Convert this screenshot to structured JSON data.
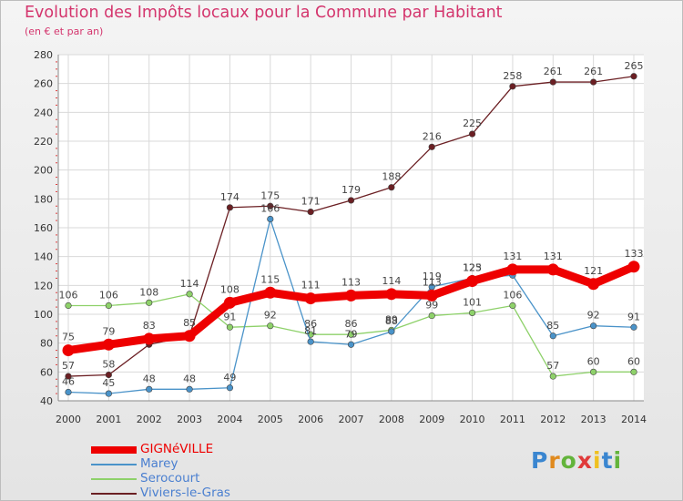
{
  "header": {
    "title": "Evolution des Impôts locaux pour la Commune par Habitant",
    "subtitle": "(en € et par an)"
  },
  "logo": {
    "text": "Proxiti",
    "colors": [
      "#3a86d0",
      "#e08a1e",
      "#63b43b",
      "#e03a3a",
      "#f0c020",
      "#3a86d0",
      "#63b43b"
    ]
  },
  "chart_data": {
    "type": "line",
    "title": "Evolution des Impôts locaux pour la Commune par Habitant",
    "subtitle": "(en € et par an)",
    "xlabel": "",
    "ylabel": "",
    "x": [
      "2000",
      "2001",
      "2002",
      "2003",
      "2004",
      "2005",
      "2006",
      "2007",
      "2008",
      "2009",
      "2010",
      "2011",
      "2012",
      "2013",
      "2014"
    ],
    "ylim": [
      40,
      280
    ],
    "yticks": [
      40,
      60,
      80,
      100,
      120,
      140,
      160,
      180,
      200,
      220,
      240,
      260,
      280
    ],
    "grid": true,
    "legend_position": "bottom-left",
    "series": [
      {
        "name": "Viviers-le-Gras",
        "color": "#6b1f23",
        "values": [
          57,
          58,
          79,
          85,
          174,
          175,
          171,
          179,
          188,
          216,
          225,
          258,
          261,
          261,
          265
        ],
        "labels": [
          "57",
          "58",
          "",
          "",
          "174",
          "175",
          "171",
          "179",
          "188",
          "216",
          "225",
          "258",
          "261",
          "261",
          "265"
        ]
      },
      {
        "name": "Serocourt",
        "color": "#8ed16a",
        "values": [
          106,
          106,
          108,
          114,
          91,
          92,
          86,
          86,
          89,
          99,
          101,
          106,
          57,
          60,
          60
        ],
        "labels": [
          "106",
          "106",
          "108",
          "114",
          "91",
          "92",
          "86",
          "86",
          "89",
          "99",
          "101",
          "106",
          "57",
          "60",
          "60"
        ]
      },
      {
        "name": "Marey",
        "color": "#4a93c9",
        "values": [
          46,
          45,
          48,
          48,
          49,
          166,
          81,
          79,
          88,
          119,
          125,
          127,
          85,
          92,
          91
        ],
        "labels": [
          "46",
          "45",
          "48",
          "48",
          "49",
          "166",
          "81",
          "79",
          "88",
          "119",
          "125",
          "",
          "85",
          "92",
          "91"
        ]
      },
      {
        "name": "GIGNéVILLE",
        "color": "#ee0000",
        "values": [
          75,
          79,
          83,
          85,
          108,
          115,
          111,
          113,
          114,
          113,
          123,
          131,
          131,
          121,
          133
        ],
        "labels": [
          "75",
          "79",
          "83",
          "85",
          "108",
          "115",
          "111",
          "113",
          "114",
          "113",
          "123",
          "131",
          "131",
          "121",
          "133"
        ]
      }
    ],
    "legend": [
      "GIGNéVILLE",
      "Marey",
      "Serocourt",
      "Viviers-le-Gras"
    ]
  }
}
